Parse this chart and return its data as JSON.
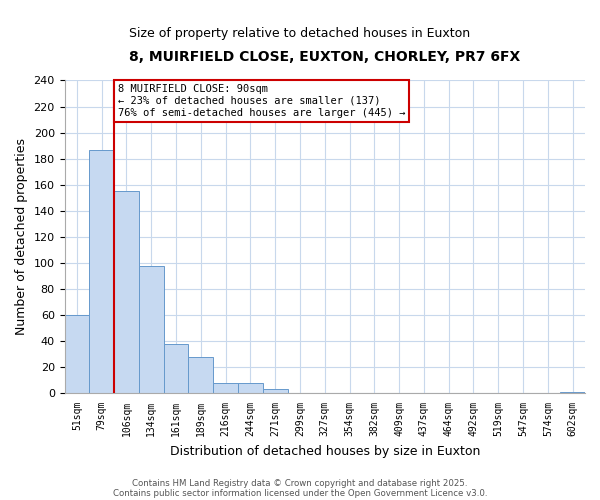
{
  "title": "8, MUIRFIELD CLOSE, EUXTON, CHORLEY, PR7 6FX",
  "subtitle": "Size of property relative to detached houses in Euxton",
  "xlabel": "Distribution of detached houses by size in Euxton",
  "ylabel": "Number of detached properties",
  "bar_labels": [
    "51sqm",
    "79sqm",
    "106sqm",
    "134sqm",
    "161sqm",
    "189sqm",
    "216sqm",
    "244sqm",
    "271sqm",
    "299sqm",
    "327sqm",
    "354sqm",
    "382sqm",
    "409sqm",
    "437sqm",
    "464sqm",
    "492sqm",
    "519sqm",
    "547sqm",
    "574sqm",
    "602sqm"
  ],
  "bar_values": [
    60,
    187,
    155,
    98,
    38,
    28,
    8,
    8,
    3,
    0,
    0,
    0,
    0,
    0,
    0,
    0,
    0,
    0,
    0,
    0,
    1
  ],
  "bar_color": "#c6d9f1",
  "bar_edge_color": "#6699cc",
  "ylim": [
    0,
    240
  ],
  "yticks": [
    0,
    20,
    40,
    60,
    80,
    100,
    120,
    140,
    160,
    180,
    200,
    220,
    240
  ],
  "vline_x": 1.5,
  "vline_color": "#cc0000",
  "annotation_title": "8 MUIRFIELD CLOSE: 90sqm",
  "annotation_line1": "← 23% of detached houses are smaller (137)",
  "annotation_line2": "76% of semi-detached houses are larger (445) →",
  "annotation_box_color": "#ffffff",
  "annotation_box_edge": "#cc0000",
  "footnote1": "Contains HM Land Registry data © Crown copyright and database right 2025.",
  "footnote2": "Contains public sector information licensed under the Open Government Licence v3.0.",
  "background_color": "#ffffff",
  "grid_color": "#c8d8ec"
}
